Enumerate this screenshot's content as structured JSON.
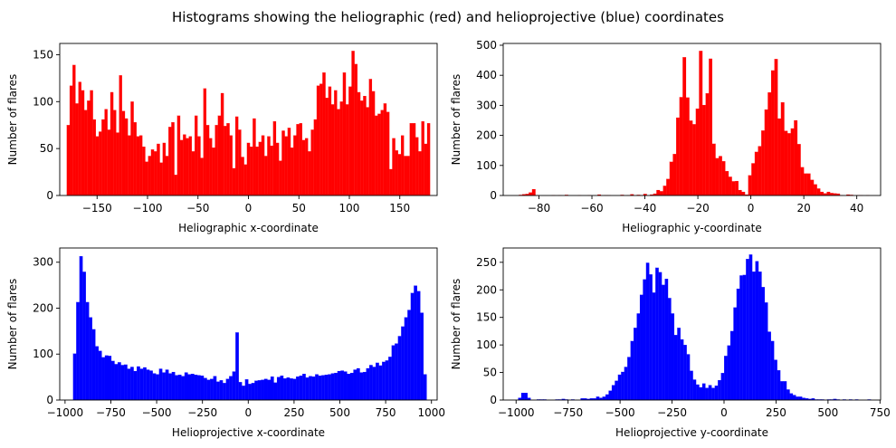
{
  "figure_title": "Histograms showing the heliographic (red) and helioprojective (blue) coordinates",
  "chart_data": [
    {
      "type": "bar",
      "subtype": "histogram",
      "color": "#ff0000",
      "xlabel": "Heliographic x-coordinate",
      "ylabel": "Number of flares",
      "xlim": [
        -187,
        187
      ],
      "ylim": [
        0,
        162
      ],
      "xticks": [
        -150,
        -100,
        -50,
        0,
        50,
        100,
        150
      ],
      "yticks": [
        0,
        50,
        100,
        150
      ],
      "bin_range": [
        -180,
        180
      ],
      "values": [
        75,
        117,
        139,
        98,
        121,
        112,
        91,
        101,
        112,
        81,
        63,
        68,
        81,
        92,
        70,
        110,
        91,
        67,
        128,
        90,
        82,
        64,
        100,
        78,
        63,
        64,
        52,
        36,
        42,
        49,
        47,
        55,
        35,
        56,
        42,
        73,
        78,
        22,
        85,
        59,
        65,
        61,
        63,
        47,
        85,
        63,
        40,
        114,
        75,
        61,
        51,
        75,
        85,
        109,
        74,
        77,
        64,
        29,
        84,
        70,
        41,
        33,
        56,
        52,
        82,
        52,
        57,
        64,
        42,
        63,
        53,
        79,
        56,
        37,
        69,
        63,
        72,
        51,
        64,
        76,
        77,
        59,
        61,
        47,
        70,
        81,
        117,
        119,
        131,
        104,
        116,
        97,
        112,
        92,
        100,
        131,
        97,
        116,
        154,
        140,
        110,
        101,
        106,
        94,
        124,
        111,
        85,
        87,
        91,
        98,
        89,
        28,
        61,
        48,
        44,
        64,
        42,
        42,
        77,
        77,
        62,
        47,
        79,
        55,
        77
      ]
    },
    {
      "type": "bar",
      "subtype": "histogram",
      "color": "#ff0000",
      "xlabel": "Heliographic y-coordinate",
      "ylabel": "Number of flares",
      "xlim": [
        -93.5,
        49.0
      ],
      "ylim": [
        0,
        506
      ],
      "xticks": [
        -80,
        -60,
        -40,
        -20,
        0,
        20,
        40
      ],
      "yticks": [
        0,
        100,
        200,
        300,
        400,
        500
      ],
      "bin_range": [
        -90,
        46
      ],
      "values": [
        0,
        0,
        2,
        4,
        5,
        10,
        21,
        1,
        0,
        0,
        0,
        0,
        1,
        0,
        1,
        0,
        2,
        0,
        0,
        0,
        1,
        0,
        0,
        1,
        0,
        0,
        3,
        0,
        1,
        1,
        0,
        0,
        0,
        2,
        0,
        1,
        4,
        0,
        2,
        1,
        5,
        0,
        3,
        6,
        18,
        14,
        32,
        55,
        112,
        138,
        259,
        327,
        460,
        326,
        249,
        237,
        289,
        481,
        301,
        340,
        455,
        172,
        124,
        131,
        114,
        81,
        62,
        47,
        48,
        18,
        12,
        3,
        67,
        107,
        145,
        164,
        216,
        286,
        343,
        416,
        454,
        256,
        310,
        215,
        207,
        223,
        250,
        171,
        94,
        73,
        73,
        52,
        37,
        23,
        12,
        7,
        12,
        8,
        7,
        6,
        1,
        0,
        3,
        2,
        0,
        1,
        1,
        0,
        1,
        0
      ]
    },
    {
      "type": "bar",
      "subtype": "histogram",
      "color": "#0000ff",
      "xlabel": "Helioprojective x-coordinate",
      "ylabel": "Number of flares",
      "xlim": [
        -1029,
        1031
      ],
      "ylim": [
        0,
        331
      ],
      "xticks": [
        -1000,
        -750,
        -500,
        -250,
        0,
        250,
        500,
        750,
        1000
      ],
      "yticks": [
        0,
        100,
        200,
        300
      ],
      "bin_range": [
        -956,
        974
      ],
      "values": [
        101,
        213,
        313,
        279,
        213,
        180,
        154,
        117,
        107,
        93,
        97,
        96,
        85,
        78,
        82,
        76,
        77,
        68,
        72,
        63,
        73,
        68,
        71,
        66,
        64,
        58,
        56,
        68,
        60,
        66,
        58,
        61,
        54,
        55,
        52,
        60,
        56,
        57,
        55,
        54,
        53,
        48,
        44,
        46,
        52,
        40,
        43,
        37,
        46,
        52,
        62,
        147,
        39,
        31,
        45,
        35,
        37,
        42,
        43,
        44,
        46,
        44,
        51,
        38,
        50,
        53,
        47,
        49,
        47,
        46,
        51,
        53,
        57,
        49,
        52,
        51,
        56,
        53,
        54,
        55,
        56,
        58,
        59,
        63,
        64,
        62,
        57,
        59,
        66,
        69,
        60,
        61,
        69,
        76,
        72,
        81,
        75,
        83,
        86,
        94,
        119,
        123,
        139,
        160,
        180,
        196,
        233,
        249,
        237,
        190,
        56
      ]
    },
    {
      "type": "bar",
      "subtype": "histogram",
      "color": "#0000ff",
      "xlabel": "Helioprojective y-coordinate",
      "ylabel": "Number of flares",
      "xlim": [
        -1062,
        753
      ],
      "ylim": [
        0,
        276
      ],
      "xticks": [
        -1000,
        -750,
        -500,
        -250,
        0,
        250,
        500,
        750
      ],
      "yticks": [
        0,
        50,
        100,
        150,
        200,
        250
      ],
      "bin_range": [
        -990,
        706
      ],
      "values": [
        4,
        13,
        13,
        4,
        0,
        0,
        1,
        1,
        1,
        0,
        0,
        0,
        1,
        1,
        2,
        1,
        0,
        1,
        0,
        0,
        3,
        3,
        2,
        3,
        3,
        6,
        4,
        6,
        10,
        17,
        27,
        35,
        46,
        51,
        60,
        78,
        107,
        131,
        157,
        191,
        219,
        249,
        228,
        195,
        240,
        232,
        209,
        220,
        185,
        157,
        118,
        131,
        110,
        100,
        83,
        53,
        37,
        28,
        23,
        30,
        22,
        27,
        22,
        26,
        36,
        49,
        80,
        99,
        125,
        168,
        202,
        226,
        227,
        256,
        264,
        233,
        252,
        233,
        205,
        177,
        124,
        107,
        73,
        54,
        34,
        34,
        19,
        12,
        9,
        6,
        6,
        4,
        3,
        2,
        3,
        1,
        1,
        1,
        0,
        1,
        1,
        2,
        1,
        0,
        1,
        0,
        1,
        0,
        1,
        0,
        0,
        0,
        1
      ]
    }
  ]
}
